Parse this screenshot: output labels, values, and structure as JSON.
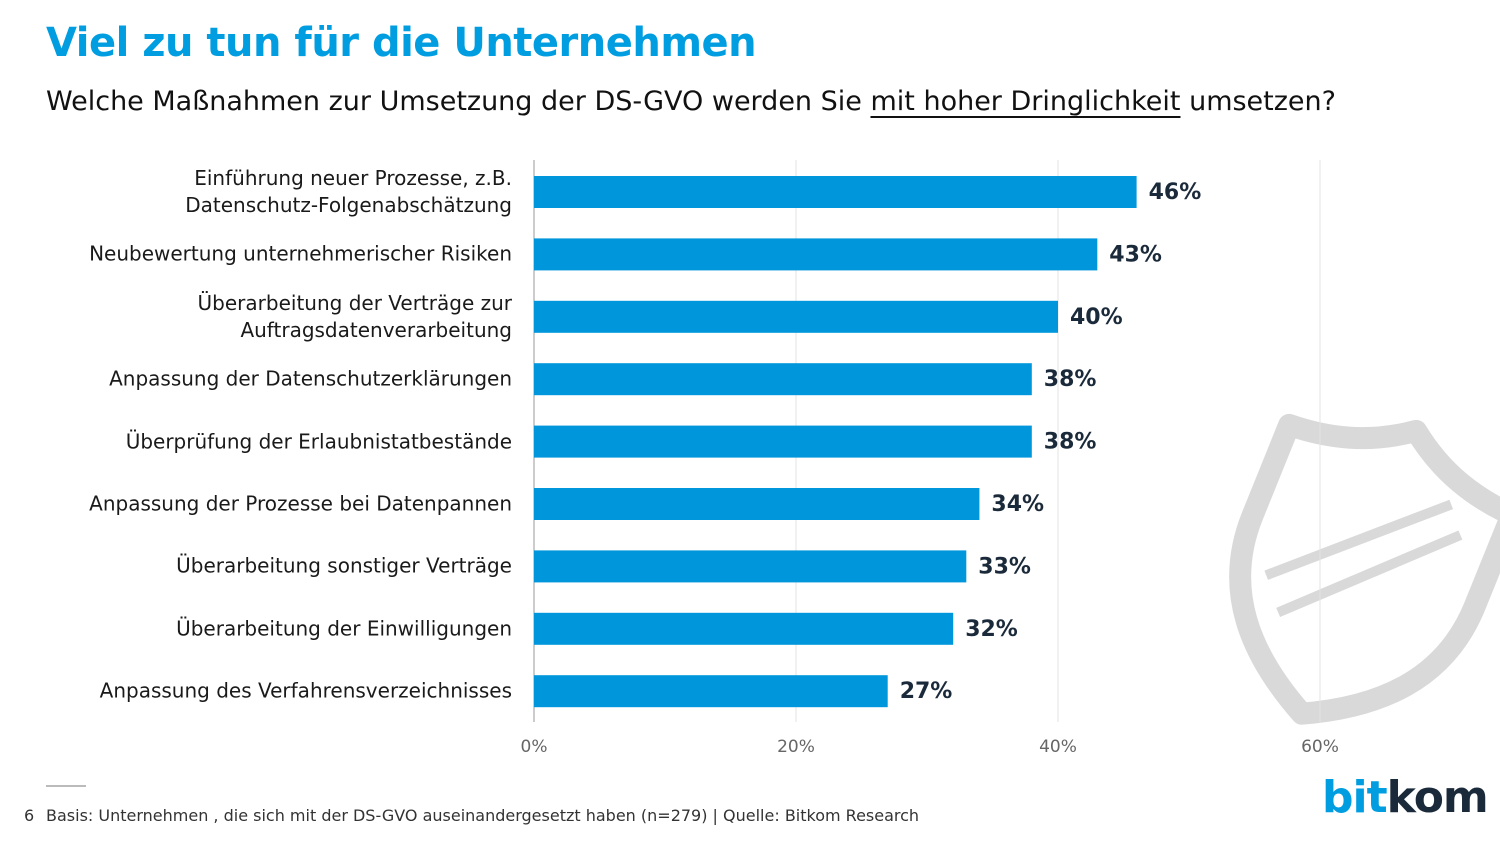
{
  "chart_data": {
    "type": "barh",
    "title": "Viel zu tun für die Unternehmen",
    "subtitle": [
      "Welche Maßnahmen zur Umsetzung der DS-GVO werden Sie",
      "mit hoher Dringlichkeit",
      "umsetzen?"
    ],
    "categories": [
      "Einführung neuer Prozesse, z.B.\nDatenschutz-Folgenabschätzung",
      "Neubewertung unternehmerischer Risiken",
      "Überarbeitung der Verträge zur\nAuftragsdatenverarbeitung",
      "Anpassung der Datenschutzerklärungen",
      "Überprüfung der Erlaubnistatbestände",
      "Anpassung der Prozesse bei Datenpannen",
      "Überarbeitung sonstiger Verträge",
      "Überarbeitung der Einwilligungen",
      "Anpassung des Verfahrensverzeichnisses"
    ],
    "values": [
      46,
      43,
      40,
      38,
      38,
      34,
      33,
      32,
      27
    ],
    "value_labels": [
      "46%",
      "43%",
      "40%",
      "38%",
      "38%",
      "34%",
      "33%",
      "32%",
      "27%"
    ],
    "color": "#0096db",
    "xlim": [
      0,
      60
    ],
    "xticks": [
      {
        "value": 0,
        "label": "0%"
      },
      {
        "value": 20,
        "label": "20%"
      },
      {
        "value": 40,
        "label": "40%"
      },
      {
        "value": 60,
        "label": "60%"
      }
    ],
    "grid": true,
    "page_number": "6",
    "footnote": "Basis: Unternehmen , die sich mit der DS-GVO auseinandergesetzt haben (n=279) | Quelle: Bitkom Research",
    "logo": [
      "bit",
      "kom"
    ]
  }
}
